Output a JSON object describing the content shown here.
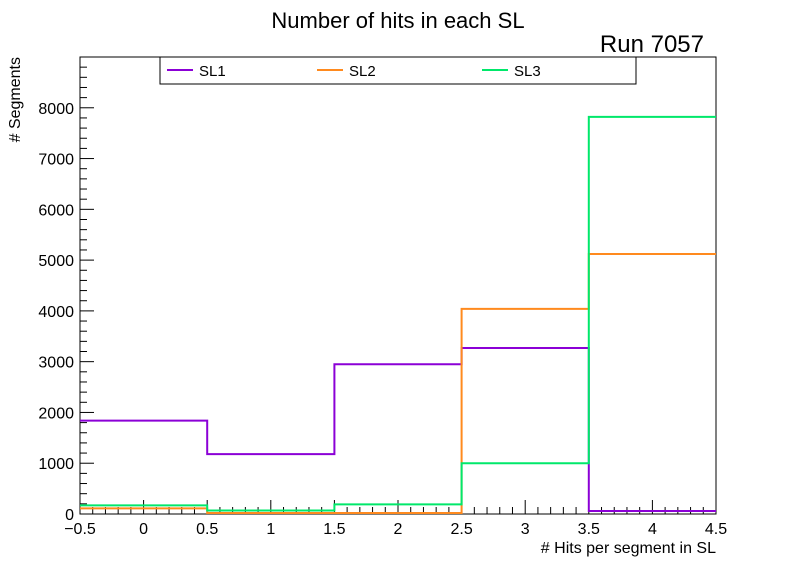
{
  "chart_data": {
    "type": "histogram-step",
    "title": "Number of hits in each SL",
    "run_label": "Run 7057",
    "xlabel": "# Hits per segment in SL",
    "ylabel": "# Segments",
    "xlim": [
      -0.5,
      4.5
    ],
    "ylim": [
      0,
      9000
    ],
    "bin_edges": [
      -0.5,
      0.5,
      1.5,
      2.5,
      3.5,
      4.5
    ],
    "x_ticks": [
      -0.5,
      0,
      0.5,
      1,
      1.5,
      2,
      2.5,
      3,
      3.5,
      4,
      4.5
    ],
    "x_tick_labels": [
      "−0.5",
      "0",
      "0.5",
      "1",
      "1.5",
      "2",
      "2.5",
      "3",
      "3.5",
      "4",
      "4.5"
    ],
    "y_ticks": [
      0,
      1000,
      2000,
      3000,
      4000,
      5000,
      6000,
      7000,
      8000
    ],
    "y_tick_labels": [
      "0",
      "1000",
      "2000",
      "3000",
      "4000",
      "5000",
      "6000",
      "7000",
      "8000"
    ],
    "series": [
      {
        "name": "SL1",
        "color": "#8b00d6",
        "values": [
          1840,
          1180,
          2950,
          3270,
          60
        ]
      },
      {
        "name": "SL2",
        "color": "#ff8a1e",
        "values": [
          110,
          20,
          20,
          4040,
          5120
        ]
      },
      {
        "name": "SL3",
        "color": "#00e86a",
        "values": [
          170,
          70,
          190,
          1000,
          7820
        ]
      }
    ],
    "legend_position": "top"
  }
}
